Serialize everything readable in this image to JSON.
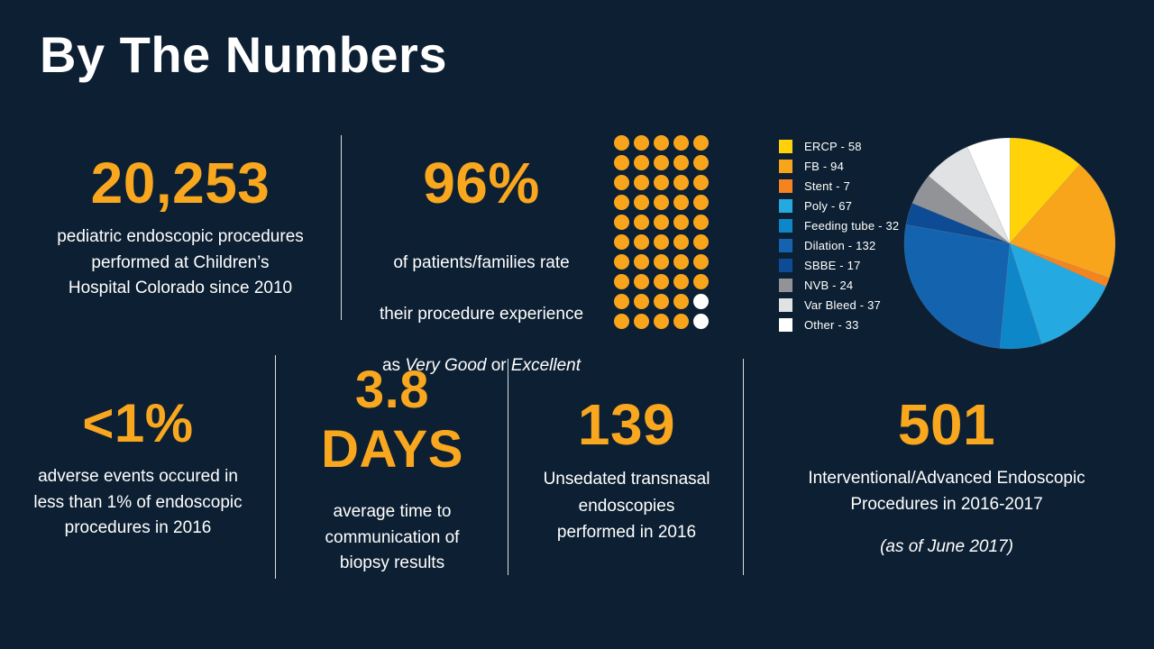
{
  "page": {
    "title": "By The Numbers",
    "background_color": "#0D2033",
    "accent_gold": "#F9A71E",
    "text_color": "#FFFFFF"
  },
  "stats": {
    "procedures": {
      "value": "20,253",
      "lines": [
        "pediatric endoscopic procedures",
        "performed at Children’s",
        "Hospital Colorado since 2010"
      ]
    },
    "satisfaction": {
      "value": "96%",
      "line1": "of patients/families rate",
      "line2": "their procedure experience",
      "line3_prefix": "as ",
      "line3_italic1": "Very Good",
      "line3_mid": " or ",
      "line3_italic2": "Excellent"
    },
    "adverse_events": {
      "value": "<1%",
      "lines": [
        "adverse events occured in",
        "less than 1% of endoscopic",
        "procedures in 2016"
      ]
    },
    "biopsy_days": {
      "value_lines": [
        "3.8",
        "DAYS"
      ],
      "lines": [
        "average time to",
        "communication of",
        "biopsy results"
      ]
    },
    "transnasal": {
      "value": "139",
      "lines": [
        "Unsedated transnasal",
        "endoscopies",
        "performed in 2016"
      ]
    },
    "interventional": {
      "value": "501",
      "lines": [
        "Interventional/Advanced Endoscopic",
        "Procedures in 2016-2017"
      ],
      "note": "(as of June 2017)"
    }
  },
  "chart_data": [
    {
      "type": "pictograph",
      "name": "satisfaction-dots",
      "represents": "96% of patients/families rate experience Very Good or Excellent",
      "rows": 10,
      "cols": 5,
      "total_dots": 50,
      "filled_dots": 48,
      "percent_represented": 96,
      "filled_color": "#F9A51B",
      "empty_color": "#FFFFFF",
      "empty_dot_indices": [
        44,
        49
      ]
    },
    {
      "type": "pie",
      "name": "procedures-pie",
      "title": "Interventional/Advanced Endoscopic Procedures in 2016-2017",
      "total": 501,
      "start_angle_deg": -90,
      "direction": "clockwise",
      "legend_position": "left-of-pie",
      "legend_separator": " - ",
      "slices": [
        {
          "label": "ERCP",
          "value": 58,
          "color": "#FFD20A"
        },
        {
          "label": "FB",
          "value": 94,
          "color": "#F9A51B"
        },
        {
          "label": "Stent",
          "value": 7,
          "color": "#F5831F"
        },
        {
          "label": "Poly",
          "value": 67,
          "color": "#24A9E0"
        },
        {
          "label": "Feeding tube",
          "value": 32,
          "color": "#0E87C9"
        },
        {
          "label": "Dilation",
          "value": 132,
          "color": "#1363AF"
        },
        {
          "label": "SBBE",
          "value": 17,
          "color": "#0D4B94"
        },
        {
          "label": "NVB",
          "value": 24,
          "color": "#919396"
        },
        {
          "label": "Var Bleed",
          "value": 37,
          "color": "#E1E2E3"
        },
        {
          "label": "Other",
          "value": 33,
          "color": "#FFFFFF"
        }
      ]
    }
  ]
}
